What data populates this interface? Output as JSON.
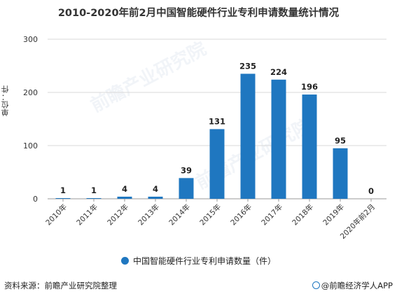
{
  "chart_data": {
    "type": "bar",
    "title": "2010-2020年前2月中国智能硬件行业专利申请数量统计情况",
    "ylabel": "单位：件",
    "categories": [
      "2010年",
      "2011年",
      "2012年",
      "2013年",
      "2014年",
      "2015年",
      "2016年",
      "2017年",
      "2018年",
      "2019年",
      "2020年前2月"
    ],
    "series": [
      {
        "name": "中国智能硬件行业专利申请数量（件）",
        "values": [
          1,
          1,
          4,
          4,
          39,
          131,
          235,
          224,
          196,
          95,
          0
        ]
      }
    ],
    "ylim": [
      0,
      300
    ],
    "yticks": [
      0,
      100,
      200,
      300
    ],
    "grid": true,
    "legend_position": "bottom",
    "bar_color": "#1f77c0"
  },
  "source": "资料来源：前瞻产业研究院整理",
  "brand": "@前瞻经济学人APP",
  "watermark": "前瞻产业研究院"
}
